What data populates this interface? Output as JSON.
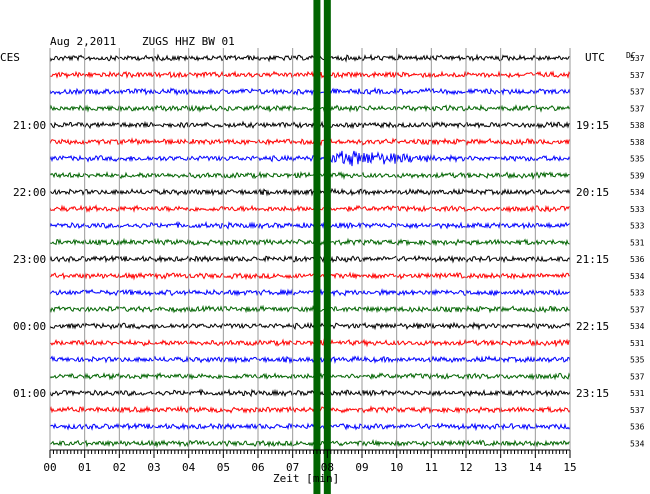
{
  "header": {
    "date": "Aug 2,2011",
    "station": "ZUGS HHZ BW 01",
    "left_zone": "CES",
    "right_zone": "UTC",
    "dc_label": "DC"
  },
  "chart_data": {
    "type": "line",
    "title": "Aug 2,2011   ZUGS HHZ BW 01",
    "xlabel": "Zeit [min]",
    "ylabel": "",
    "x_range": [
      0,
      15
    ],
    "x_ticks": [
      "00",
      "01",
      "02",
      "03",
      "04",
      "05",
      "06",
      "07",
      "08",
      "09",
      "10",
      "11",
      "12",
      "13",
      "14",
      "15"
    ],
    "grid": true,
    "trace_count": 24,
    "trace_colors": [
      "#000000",
      "#ff0000",
      "#0000ff",
      "#006400"
    ],
    "left_time_labels": [
      {
        "trace": 4,
        "label": "21:00"
      },
      {
        "trace": 8,
        "label": "22:00"
      },
      {
        "trace": 12,
        "label": "23:00"
      },
      {
        "trace": 16,
        "label": "00:00"
      },
      {
        "trace": 20,
        "label": "01:00"
      }
    ],
    "right_time_labels": [
      {
        "trace": 4,
        "label": "19:15"
      },
      {
        "trace": 8,
        "label": "20:15"
      },
      {
        "trace": 12,
        "label": "21:15"
      },
      {
        "trace": 16,
        "label": "22:15"
      },
      {
        "trace": 20,
        "label": "23:15"
      }
    ],
    "dc_offsets": [
      537,
      537,
      537,
      537,
      538,
      538,
      535,
      539,
      534,
      533,
      533,
      531,
      536,
      534,
      533,
      537,
      534,
      531,
      535,
      537,
      531,
      537,
      536,
      534
    ],
    "event_marker_minutes": [
      7.7,
      8.0
    ],
    "marker_color": "#006400"
  }
}
